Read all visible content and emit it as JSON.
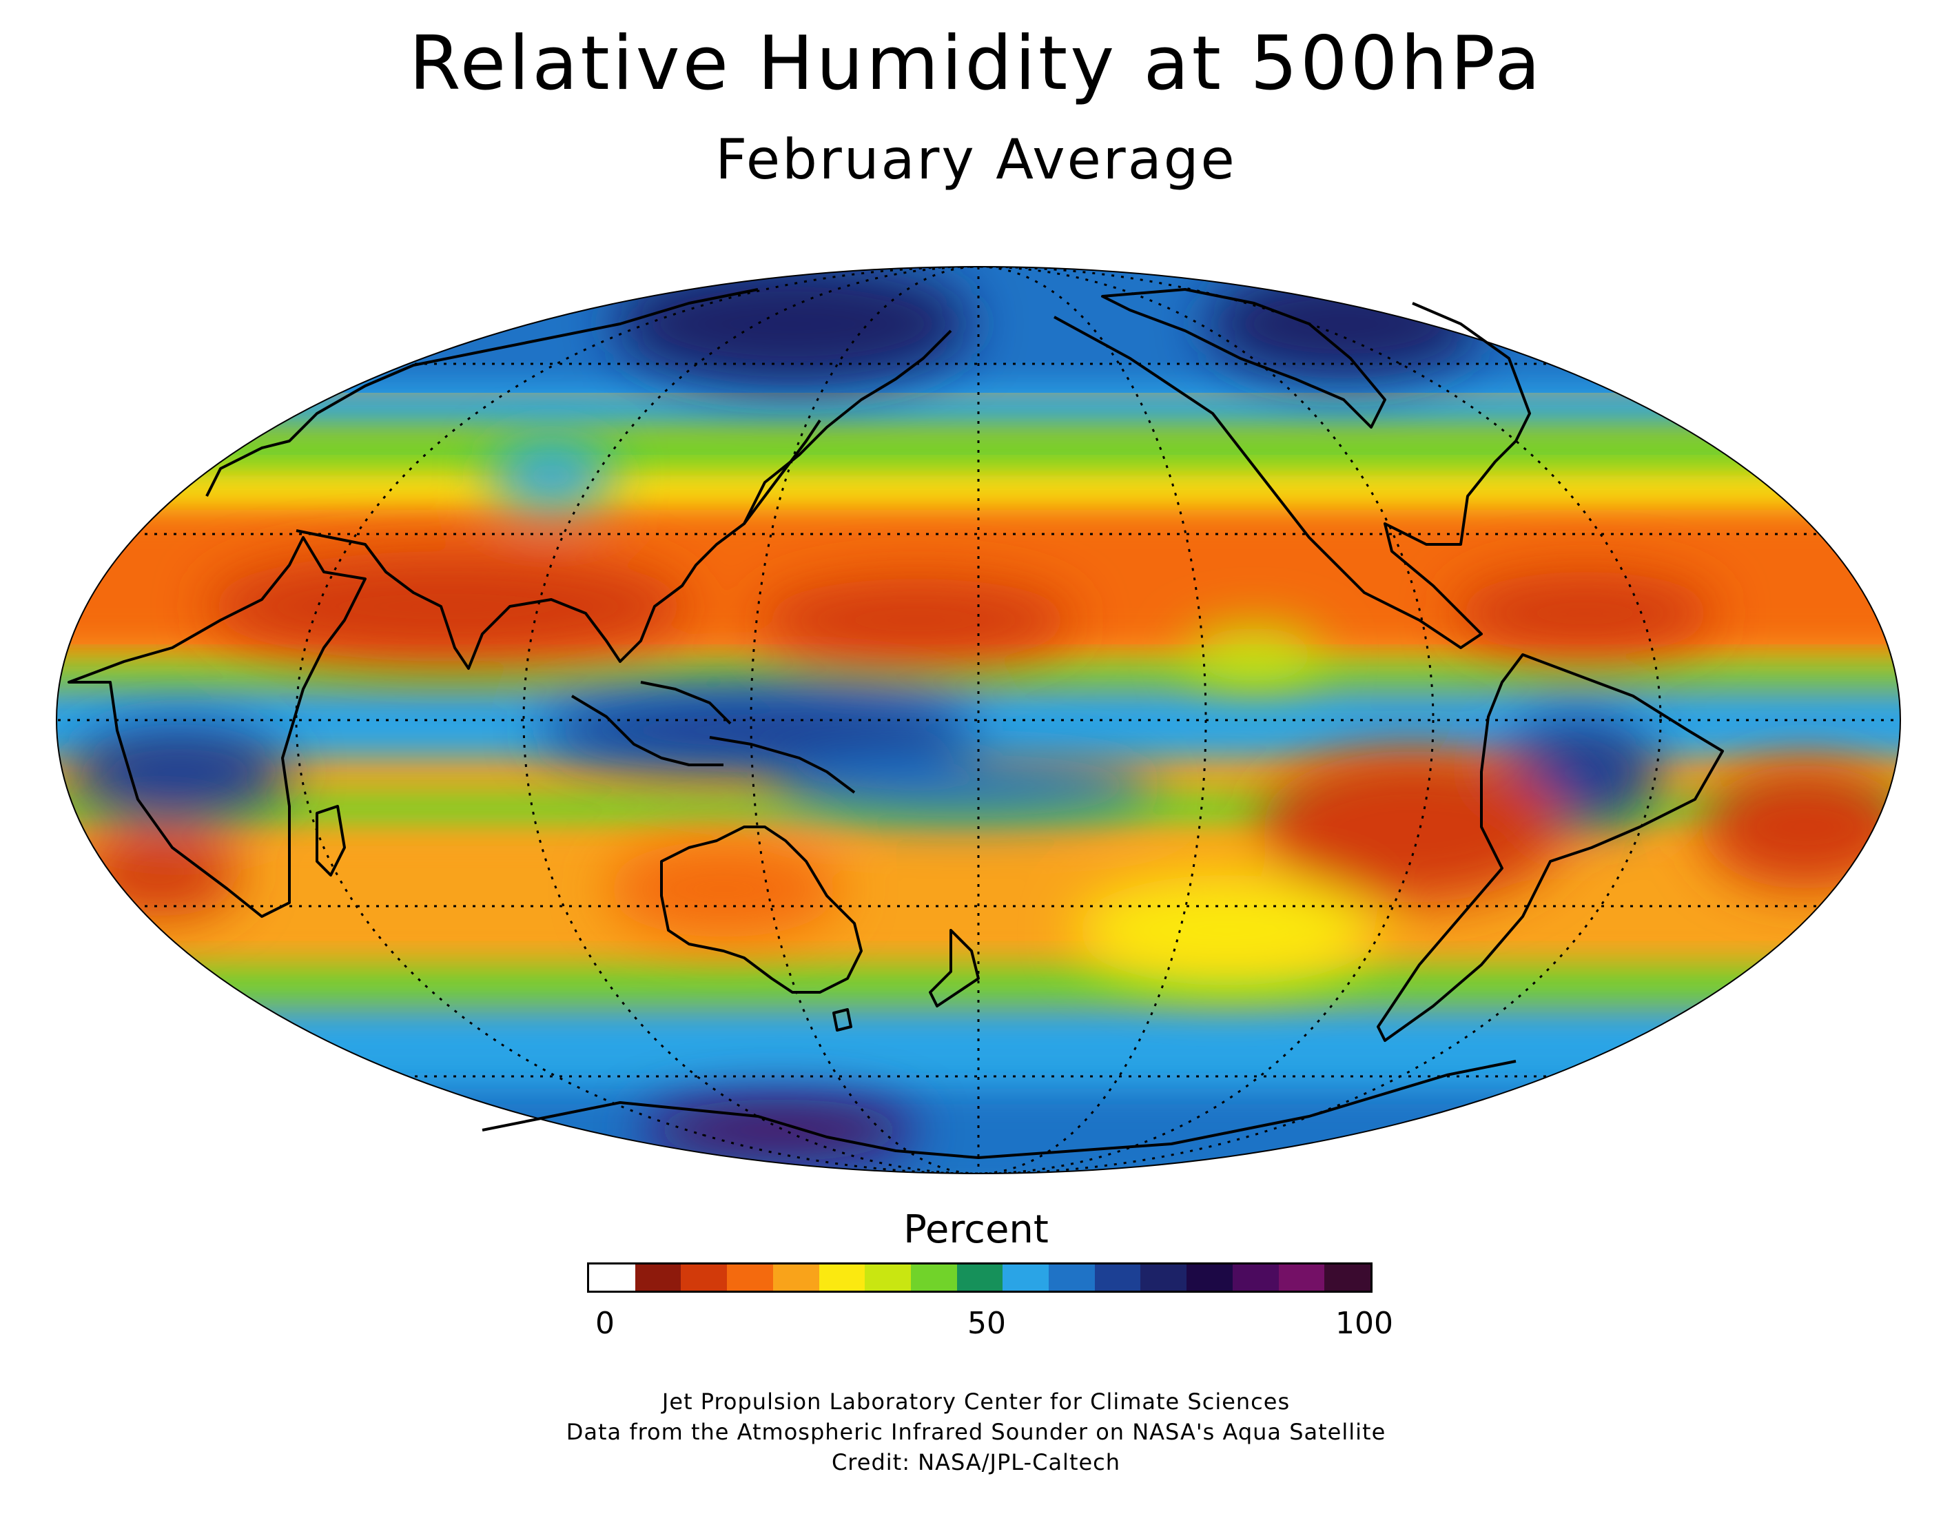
{
  "title": "Relative Humidity at 500hPa",
  "subtitle": "February Average",
  "map": {
    "projection": "Mollweide",
    "central_meridian": "180",
    "graticule": "dotted",
    "coastlines": true
  },
  "colorbar": {
    "title": "Percent",
    "ticks": [
      "0",
      "50",
      "100"
    ],
    "colors": [
      "#ffffff",
      "#8e1a0c",
      "#d23a0a",
      "#f46a0e",
      "#f9a31a",
      "#fbe910",
      "#c9e611",
      "#71d32a",
      "#16915a",
      "#2aa4e6",
      "#1f73c6",
      "#1c4094",
      "#1c2267",
      "#1c0845",
      "#4b0a5e",
      "#741066",
      "#3a0a2f"
    ]
  },
  "credits": [
    "Jet Propulsion Laboratory Center for Climate Sciences",
    "Data from the Atmospheric Infrared Sounder on NASA's Aqua Satellite",
    "Credit: NASA/JPL-Caltech"
  ]
}
